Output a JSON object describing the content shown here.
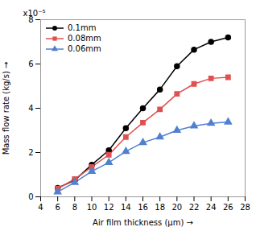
{
  "chart_data": {
    "type": "line",
    "xlabel": "Air film thickness (μm)",
    "ylabel": "Mass flow rate (kg/s)",
    "annotation": "x10⁻⁵",
    "x": [
      6,
      8,
      10,
      12,
      14,
      16,
      18,
      20,
      22,
      24,
      26
    ],
    "series": [
      {
        "name": "0.1mm",
        "color": "#000000",
        "marker": "circle",
        "values": [
          0.4,
          0.75,
          1.45,
          2.1,
          3.1,
          4.0,
          4.85,
          5.9,
          6.65,
          7.0,
          7.2
        ]
      },
      {
        "name": "0.08mm",
        "color": "#e05050",
        "marker": "square",
        "values": [
          0.38,
          0.8,
          1.35,
          1.9,
          2.7,
          3.35,
          3.95,
          4.65,
          5.1,
          5.35,
          5.4
        ]
      },
      {
        "name": "0.06mm",
        "color": "#5080d0",
        "marker": "triangle",
        "values": [
          0.22,
          0.65,
          1.15,
          1.55,
          2.05,
          2.45,
          2.7,
          3.0,
          3.2,
          3.32,
          3.38
        ]
      }
    ],
    "xlim": [
      4,
      28
    ],
    "ylim": [
      0,
      8
    ],
    "xticks": [
      4,
      6,
      8,
      10,
      12,
      14,
      16,
      18,
      20,
      22,
      24,
      26,
      28
    ],
    "yticks": [
      0,
      2,
      4,
      6,
      8
    ],
    "grid": false,
    "legend": "upper left"
  }
}
